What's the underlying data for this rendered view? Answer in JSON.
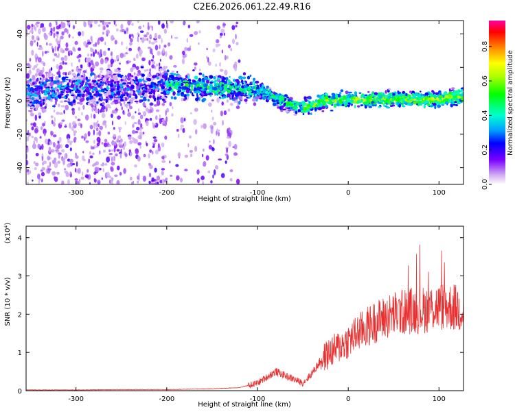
{
  "title": "C2E6.2026.061.22.49.R16",
  "chart_data": [
    {
      "type": "heatmap",
      "xlabel": "Height of straight line (km)",
      "ylabel": "Frequency (Hz)",
      "xlim": [
        -355,
        127
      ],
      "ylim": [
        -50,
        48
      ],
      "xticks": [
        -300,
        -200,
        -100,
        0,
        100
      ],
      "yticks": [
        -40,
        -20,
        0,
        20,
        40
      ],
      "colorbar": {
        "label": "Normalized spectral amplitude",
        "range": [
          0,
          0.95
        ],
        "ticks": [
          0.0,
          0.2,
          0.4,
          0.6,
          0.8
        ],
        "colormap": "rainbow"
      },
      "ridge": {
        "x": [
          -350,
          -300,
          -250,
          -200,
          -150,
          -100,
          -75,
          -50,
          -25,
          0,
          50,
          100,
          127
        ],
        "center_freq": [
          4,
          8,
          7,
          10,
          8,
          7,
          0,
          -4,
          0,
          1,
          1,
          1,
          3
        ]
      }
    },
    {
      "type": "line",
      "xlabel": "Height of straight line (km)",
      "ylabel": "SNR (10 * v/v)",
      "yscale_label": "(x10⁴)",
      "xlim": [
        -355,
        127
      ],
      "ylim": [
        0,
        4.3
      ],
      "xticks": [
        -300,
        -200,
        -100,
        0,
        100
      ],
      "yticks": [
        0,
        1,
        2,
        3,
        4
      ],
      "series": [
        {
          "color": "#e83030",
          "x": [
            -355,
            -300,
            -250,
            -200,
            -150,
            -120,
            -100,
            -90,
            -80,
            -70,
            -60,
            -50,
            -40,
            -30,
            -20,
            -10,
            0,
            10,
            20,
            30,
            40,
            50,
            60,
            70,
            80,
            90,
            100,
            110,
            120,
            127
          ],
          "y": [
            0.02,
            0.02,
            0.03,
            0.03,
            0.05,
            0.08,
            0.2,
            0.35,
            0.5,
            0.4,
            0.3,
            0.2,
            0.45,
            0.8,
            1.0,
            1.15,
            1.3,
            1.5,
            1.65,
            1.8,
            1.9,
            2.0,
            2.05,
            2.1,
            2.1,
            2.15,
            2.2,
            2.2,
            2.15,
            2.1
          ]
        }
      ]
    }
  ]
}
